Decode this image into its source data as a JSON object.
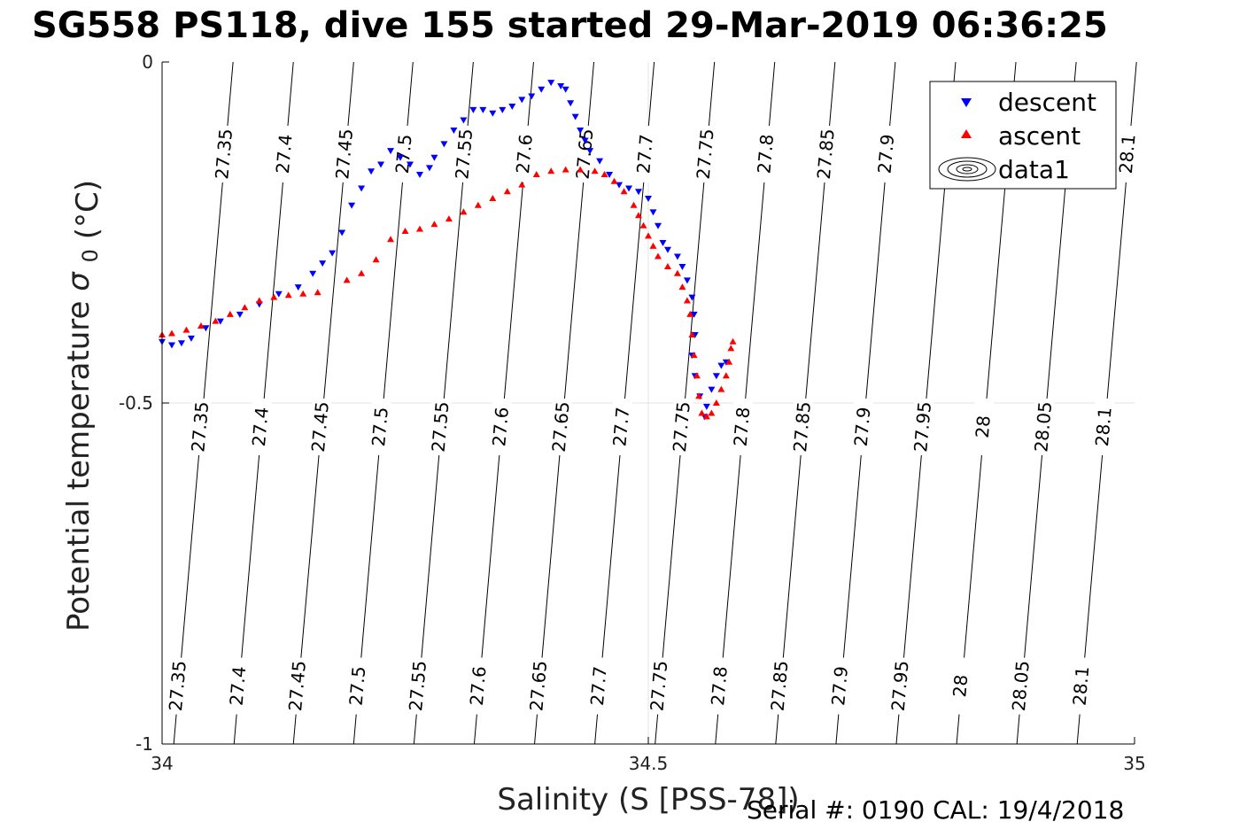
{
  "title": "SG558 PS118, dive 155 started 29-Mar-2019 06:36:25",
  "footer": "Serial #: 0190  CAL: 19/4/2018",
  "chart_data": {
    "type": "scatter",
    "xlabel": "Salinity (S [PSS-78])",
    "ylabel": "Potential temperature",
    "ylabel_symbol": "σ",
    "ylabel_sub": "0",
    "ylabel_unit": "(°C)",
    "xlim": [
      34,
      35
    ],
    "ylim": [
      -1,
      0
    ],
    "xticks": [
      34,
      34.5,
      35
    ],
    "yticks": [
      -1,
      -0.5,
      0
    ],
    "xtick_labels": [
      "34",
      "34.5",
      "35"
    ],
    "ytick_labels": [
      "-1",
      "-0.5",
      "0"
    ],
    "grid": true,
    "legend_position": "top-right",
    "legend": [
      "descent",
      "ascent",
      "data1"
    ],
    "series": [
      {
        "name": "descent",
        "marker": "down-triangle",
        "color": "#0000ff",
        "points": [
          [
            34.0,
            -0.41
          ],
          [
            34.01,
            -0.415
          ],
          [
            34.02,
            -0.412
          ],
          [
            34.03,
            -0.405
          ],
          [
            34.045,
            -0.39
          ],
          [
            34.06,
            -0.38
          ],
          [
            34.08,
            -0.37
          ],
          [
            34.1,
            -0.355
          ],
          [
            34.12,
            -0.34
          ],
          [
            34.14,
            -0.33
          ],
          [
            34.155,
            -0.31
          ],
          [
            34.165,
            -0.295
          ],
          [
            34.175,
            -0.28
          ],
          [
            34.185,
            -0.25
          ],
          [
            34.195,
            -0.21
          ],
          [
            34.205,
            -0.185
          ],
          [
            34.215,
            -0.16
          ],
          [
            34.225,
            -0.15
          ],
          [
            34.235,
            -0.13
          ],
          [
            34.245,
            -0.14
          ],
          [
            34.255,
            -0.15
          ],
          [
            34.265,
            -0.165
          ],
          [
            34.275,
            -0.155
          ],
          [
            34.28,
            -0.14
          ],
          [
            34.29,
            -0.12
          ],
          [
            34.3,
            -0.1
          ],
          [
            34.31,
            -0.085
          ],
          [
            34.32,
            -0.07
          ],
          [
            34.33,
            -0.07
          ],
          [
            34.34,
            -0.075
          ],
          [
            34.35,
            -0.07
          ],
          [
            34.36,
            -0.065
          ],
          [
            34.37,
            -0.055
          ],
          [
            34.38,
            -0.05
          ],
          [
            34.39,
            -0.04
          ],
          [
            34.4,
            -0.03
          ],
          [
            34.41,
            -0.035
          ],
          [
            34.415,
            -0.04
          ],
          [
            34.42,
            -0.06
          ],
          [
            34.425,
            -0.08
          ],
          [
            34.43,
            -0.1
          ],
          [
            34.435,
            -0.115
          ],
          [
            34.44,
            -0.13
          ],
          [
            34.45,
            -0.145
          ],
          [
            34.46,
            -0.165
          ],
          [
            34.47,
            -0.18
          ],
          [
            34.48,
            -0.185
          ],
          [
            34.49,
            -0.19
          ],
          [
            34.5,
            -0.2
          ],
          [
            34.505,
            -0.22
          ],
          [
            34.51,
            -0.24
          ],
          [
            34.515,
            -0.265
          ],
          [
            34.52,
            -0.275
          ],
          [
            34.53,
            -0.285
          ],
          [
            34.535,
            -0.3
          ],
          [
            34.54,
            -0.32
          ],
          [
            34.545,
            -0.345
          ],
          [
            34.547,
            -0.37
          ],
          [
            34.548,
            -0.4
          ],
          [
            34.545,
            -0.43
          ],
          [
            34.548,
            -0.46
          ],
          [
            34.553,
            -0.49
          ],
          [
            34.558,
            -0.52
          ],
          [
            34.56,
            -0.505
          ],
          [
            34.565,
            -0.48
          ],
          [
            34.57,
            -0.46
          ],
          [
            34.575,
            -0.445
          ],
          [
            34.58,
            -0.44
          ]
        ]
      },
      {
        "name": "ascent",
        "marker": "up-triangle",
        "color": "#ff0000",
        "points": [
          [
            34.0,
            -0.4
          ],
          [
            34.01,
            -0.398
          ],
          [
            34.025,
            -0.393
          ],
          [
            34.04,
            -0.387
          ],
          [
            34.055,
            -0.38
          ],
          [
            34.07,
            -0.37
          ],
          [
            34.085,
            -0.36
          ],
          [
            34.1,
            -0.35
          ],
          [
            34.115,
            -0.345
          ],
          [
            34.13,
            -0.342
          ],
          [
            34.145,
            -0.34
          ],
          [
            34.16,
            -0.338
          ],
          [
            34.19,
            -0.32
          ],
          [
            34.205,
            -0.31
          ],
          [
            34.22,
            -0.29
          ],
          [
            34.235,
            -0.26
          ],
          [
            34.25,
            -0.248
          ],
          [
            34.265,
            -0.245
          ],
          [
            34.28,
            -0.238
          ],
          [
            34.295,
            -0.23
          ],
          [
            34.31,
            -0.22
          ],
          [
            34.325,
            -0.21
          ],
          [
            34.34,
            -0.2
          ],
          [
            34.355,
            -0.19
          ],
          [
            34.37,
            -0.18
          ],
          [
            34.385,
            -0.165
          ],
          [
            34.4,
            -0.16
          ],
          [
            34.415,
            -0.158
          ],
          [
            34.43,
            -0.158
          ],
          [
            34.445,
            -0.16
          ],
          [
            34.455,
            -0.165
          ],
          [
            34.465,
            -0.175
          ],
          [
            34.475,
            -0.19
          ],
          [
            34.485,
            -0.21
          ],
          [
            34.49,
            -0.225
          ],
          [
            34.495,
            -0.24
          ],
          [
            34.5,
            -0.255
          ],
          [
            34.505,
            -0.27
          ],
          [
            34.51,
            -0.285
          ],
          [
            34.52,
            -0.3
          ],
          [
            34.53,
            -0.31
          ],
          [
            34.535,
            -0.33
          ],
          [
            34.54,
            -0.35
          ],
          [
            34.543,
            -0.37
          ],
          [
            34.545,
            -0.4
          ],
          [
            34.547,
            -0.43
          ],
          [
            34.55,
            -0.46
          ],
          [
            34.552,
            -0.49
          ],
          [
            34.555,
            -0.515
          ],
          [
            34.56,
            -0.52
          ],
          [
            34.565,
            -0.515
          ],
          [
            34.57,
            -0.5
          ],
          [
            34.575,
            -0.48
          ],
          [
            34.58,
            -0.46
          ],
          [
            34.583,
            -0.44
          ],
          [
            34.585,
            -0.42
          ],
          [
            34.587,
            -0.41
          ]
        ]
      }
    ],
    "isopycnals": [
      {
        "label": "27.35",
        "x_bottom": 34.012,
        "x_top": 34.073
      },
      {
        "label": "27.4",
        "x_bottom": 34.074,
        "x_top": 34.135
      },
      {
        "label": "27.45",
        "x_bottom": 34.135,
        "x_top": 34.197
      },
      {
        "label": "27.5",
        "x_bottom": 34.197,
        "x_top": 34.258
      },
      {
        "label": "27.55",
        "x_bottom": 34.259,
        "x_top": 34.32
      },
      {
        "label": "27.6",
        "x_bottom": 34.321,
        "x_top": 34.382
      },
      {
        "label": "27.65",
        "x_bottom": 34.383,
        "x_top": 34.444
      },
      {
        "label": "27.7",
        "x_bottom": 34.445,
        "x_top": 34.506
      },
      {
        "label": "27.75",
        "x_bottom": 34.507,
        "x_top": 34.568
      },
      {
        "label": "27.8",
        "x_bottom": 34.569,
        "x_top": 34.63
      },
      {
        "label": "27.85",
        "x_bottom": 34.631,
        "x_top": 34.692
      },
      {
        "label": "27.9",
        "x_bottom": 34.693,
        "x_top": 34.754
      },
      {
        "label": "27.95",
        "x_bottom": 34.755,
        "x_top": 34.816
      },
      {
        "label": "28",
        "x_bottom": 34.817,
        "x_top": 34.878
      },
      {
        "label": "28.05",
        "x_bottom": 34.879,
        "x_top": 34.94
      },
      {
        "label": "28.1",
        "x_bottom": 34.941,
        "x_top": 35.002
      }
    ],
    "isopycnal_label_rows": {
      "top": [
        "27.35",
        "27.4",
        "27.45",
        "27.5",
        "27.55",
        "27.6",
        "27.65",
        "27.7",
        "27.75",
        "27.8",
        "27.85",
        "27.9",
        "28.1"
      ],
      "middle": [
        "27.35",
        "27.4",
        "27.45",
        "27.5",
        "27.55",
        "27.6",
        "27.65",
        "27.7",
        "27.75",
        "27.8",
        "27.85",
        "27.9",
        "27.95",
        "28",
        "28.05",
        "28.1"
      ],
      "bottom": [
        "27.35",
        "27.4",
        "27.45",
        "27.5",
        "27.55",
        "27.6",
        "27.65",
        "27.7",
        "27.75",
        "27.8",
        "27.85",
        "27.9",
        "27.95",
        "28",
        "28.05",
        "28.1"
      ]
    }
  }
}
